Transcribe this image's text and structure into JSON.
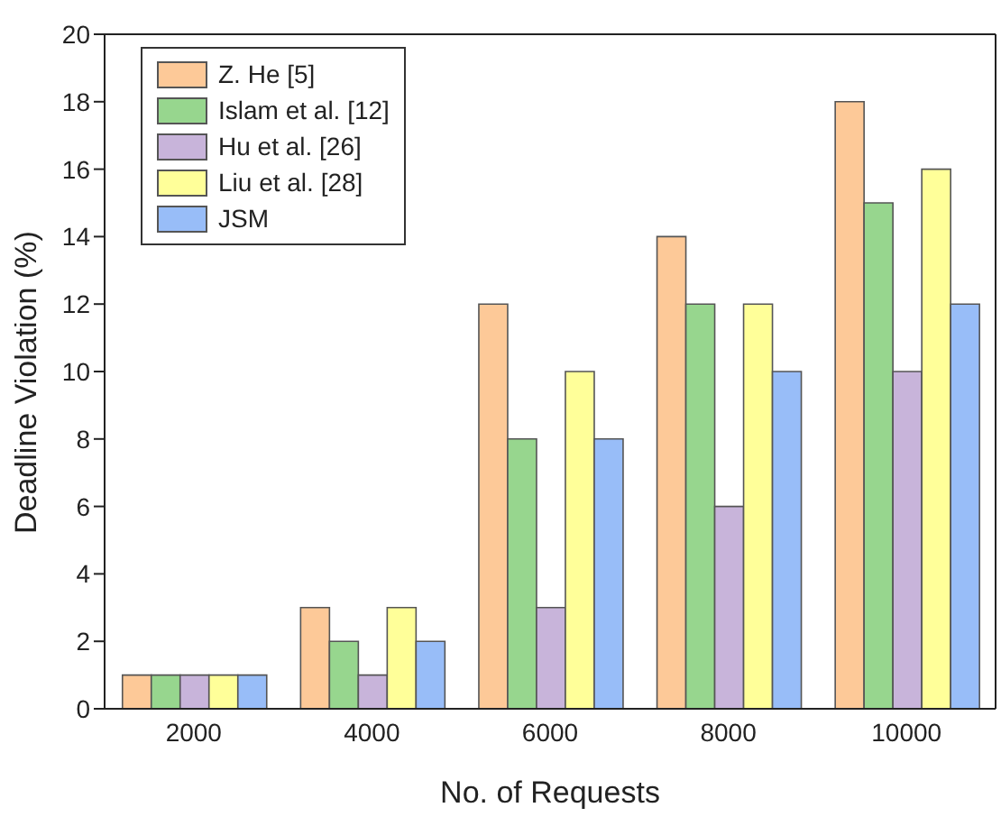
{
  "chart_data": {
    "type": "bar",
    "xlabel": "No. of Requests",
    "ylabel": "Deadline Violation (%)",
    "categories": [
      "2000",
      "4000",
      "6000",
      "8000",
      "10000"
    ],
    "series": [
      {
        "name": "Z. He [5]",
        "color": "#fdc998",
        "values": [
          1,
          3,
          12,
          14,
          18
        ]
      },
      {
        "name": "Islam et al. [12]",
        "color": "#97d68e",
        "values": [
          1,
          2,
          8,
          12,
          15
        ]
      },
      {
        "name": "Hu et al. [26]",
        "color": "#c8b4da",
        "values": [
          1,
          1,
          3,
          6,
          10
        ]
      },
      {
        "name": "Liu et al. [28]",
        "color": "#ffff99",
        "values": [
          1,
          3,
          10,
          12,
          16
        ]
      },
      {
        "name": "JSM",
        "color": "#98bdf8",
        "values": [
          1,
          2,
          8,
          10,
          12
        ]
      }
    ],
    "ylim": [
      0,
      20
    ],
    "yticks": [
      0,
      2,
      4,
      6,
      8,
      10,
      12,
      14,
      16,
      18,
      20
    ],
    "grid": false,
    "legend": "top left"
  }
}
